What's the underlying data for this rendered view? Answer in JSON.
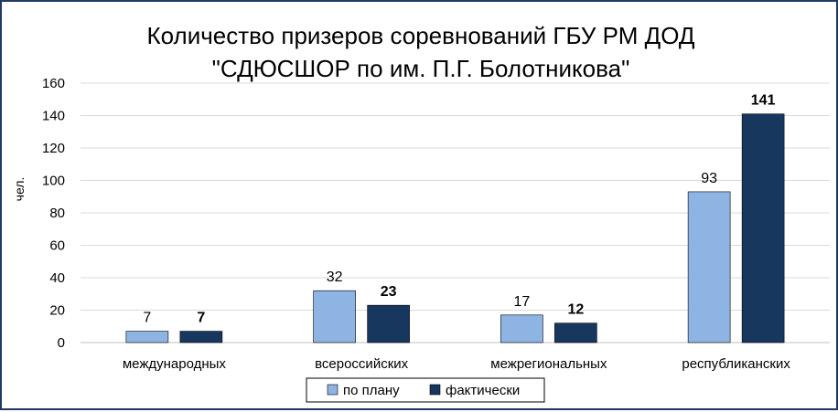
{
  "chart_data": {
    "type": "bar",
    "title": "Количество призеров соревнований ГБУ РМ ДОД \"СДЮСШОР по им. П.Г. Болотникова\"",
    "title_lines": [
      "Количество призеров соревнований ГБУ РМ ДОД",
      "\"СДЮСШОР по им. П.Г. Болотникова\""
    ],
    "ylabel": "чел.",
    "xlabel": "",
    "ylim": [
      0,
      160
    ],
    "yticks": [
      0,
      20,
      40,
      60,
      80,
      100,
      120,
      140,
      160
    ],
    "grid": true,
    "legend_position": "bottom",
    "categories": [
      "международных",
      "всероссийских",
      "межрегиональных",
      "республиканских"
    ],
    "series": [
      {
        "name": "по плану",
        "values": [
          7,
          32,
          17,
          93
        ],
        "color": "#8eb4e3",
        "label_bold": false
      },
      {
        "name": "фактически",
        "values": [
          7,
          23,
          12,
          141
        ],
        "color": "#17375e",
        "label_bold": true
      }
    ]
  }
}
